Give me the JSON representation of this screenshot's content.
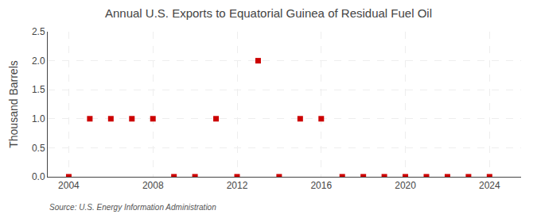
{
  "chart_data": {
    "type": "scatter",
    "title": "Annual U.S. Exports to Equatorial Guinea of Residual Fuel Oil",
    "y_label": "Thousand Barrels",
    "annotations": [
      "Source: U.S. Energy Information Administration"
    ],
    "x": [
      2004,
      2005,
      2006,
      2007,
      2008,
      2009,
      2010,
      2011,
      2012,
      2013,
      2014,
      2015,
      2016,
      2017,
      2018,
      2019,
      2020,
      2021,
      2022,
      2023,
      2024
    ],
    "values": [
      0,
      1,
      1,
      1,
      1,
      0,
      0,
      1,
      0,
      2,
      0,
      1,
      1,
      0,
      0,
      0,
      0,
      0,
      0,
      0,
      0
    ],
    "color": "#cc0000",
    "marker": "square",
    "xlim": [
      2003.0,
      2025.5
    ],
    "xticks": [
      2004,
      2008,
      2012,
      2016,
      2020,
      2024
    ],
    "ylim": [
      0,
      2.5
    ],
    "yticks": [
      {
        "value": 0,
        "label": "0.0"
      },
      0.5,
      {
        "value": 1,
        "label": "1.0"
      },
      1.5,
      {
        "value": 2,
        "label": "2.0"
      },
      2.5
    ],
    "grid": true
  }
}
